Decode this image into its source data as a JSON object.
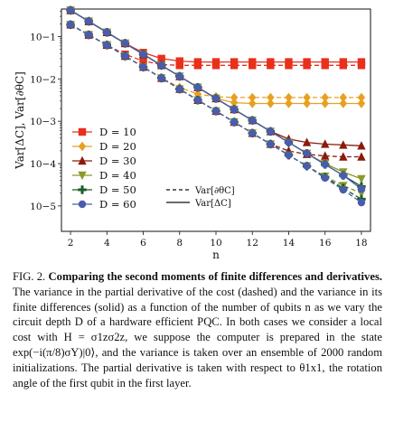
{
  "figure_label": "FIG. 2.",
  "caption_title": "Comparing the second moments of finite differences and derivatives.",
  "caption_body": "The variance in the partial derivative of the cost (dashed) and the variance in its finite differences (solid) as a function of the number of qubits n as we vary the circuit depth D of a hardware efficient PQC. In both cases we consider a local cost with H = σ1zσ2z, we suppose the computer is prepared in the state exp(−i(π/8)σY)|0⟩, and the variance is taken over an ensemble of 2000 random initializations. The partial derivative is taken with respect to θ1x1, the rotation angle of the first qubit in the first layer.",
  "chart_data": {
    "type": "line",
    "xlabel": "n",
    "ylabel": "Var[ΔC], Var[∂θC]",
    "yscale": "log",
    "xlim": [
      1.5,
      18.5
    ],
    "ylim_exp": [
      -5.6,
      -0.35
    ],
    "x_ticks": [
      "2",
      "4",
      "6",
      "8",
      "10",
      "12",
      "14",
      "16",
      "18"
    ],
    "y_ticks": [
      "10−1",
      "10−2",
      "10−3",
      "10−4",
      "10−5"
    ],
    "legend_style_entries": [
      "Var[∂θC]",
      "Var[ΔC]"
    ],
    "x": [
      2,
      3,
      4,
      5,
      6,
      7,
      8,
      9,
      10,
      11,
      12,
      13,
      14,
      15,
      16,
      17,
      18
    ],
    "series": [
      {
        "name": "D = 10",
        "color": "#e8301c",
        "marker": "square",
        "solid_log10": [
          -0.38,
          -0.64,
          -0.9,
          -1.16,
          -1.38,
          -1.52,
          -1.58,
          -1.6,
          -1.6,
          -1.6,
          -1.6,
          -1.6,
          -1.6,
          -1.6,
          -1.6,
          -1.6,
          -1.6
        ],
        "dashed_log10": [
          -0.72,
          -0.96,
          -1.2,
          -1.42,
          -1.58,
          -1.66,
          -1.68,
          -1.68,
          -1.68,
          -1.68,
          -1.68,
          -1.68,
          -1.68,
          -1.68,
          -1.68,
          -1.68,
          -1.68
        ]
      },
      {
        "name": "D = 20",
        "color": "#e8a020",
        "marker": "diamond",
        "solid_log10": [
          -0.38,
          -0.64,
          -0.9,
          -1.16,
          -1.42,
          -1.68,
          -1.94,
          -2.2,
          -2.46,
          -2.56,
          -2.58,
          -2.58,
          -2.58,
          -2.58,
          -2.58,
          -2.58,
          -2.58
        ],
        "dashed_log10": [
          -0.72,
          -0.96,
          -1.2,
          -1.46,
          -1.72,
          -1.98,
          -2.2,
          -2.36,
          -2.42,
          -2.44,
          -2.44,
          -2.44,
          -2.44,
          -2.44,
          -2.44,
          -2.44,
          -2.44
        ]
      },
      {
        "name": "D = 30",
        "color": "#8b1a0c",
        "marker": "triangle-up",
        "solid_log10": [
          -0.38,
          -0.64,
          -0.9,
          -1.16,
          -1.42,
          -1.68,
          -1.94,
          -2.2,
          -2.46,
          -2.72,
          -2.98,
          -3.24,
          -3.42,
          -3.5,
          -3.54,
          -3.56,
          -3.58
        ],
        "dashed_log10": [
          -0.72,
          -0.96,
          -1.2,
          -1.46,
          -1.72,
          -1.98,
          -2.24,
          -2.5,
          -2.76,
          -3.02,
          -3.28,
          -3.54,
          -3.7,
          -3.78,
          -3.82,
          -3.84,
          -3.84
        ]
      },
      {
        "name": "D = 40",
        "color": "#8a9a2a",
        "marker": "triangle-down",
        "solid_log10": [
          -0.38,
          -0.64,
          -0.9,
          -1.16,
          -1.42,
          -1.68,
          -1.94,
          -2.2,
          -2.46,
          -2.72,
          -2.98,
          -3.24,
          -3.5,
          -3.76,
          -4.0,
          -4.2,
          -4.36
        ],
        "dashed_log10": [
          -0.72,
          -0.96,
          -1.2,
          -1.46,
          -1.72,
          -1.98,
          -2.24,
          -2.5,
          -2.76,
          -3.02,
          -3.28,
          -3.54,
          -3.8,
          -4.06,
          -4.3,
          -4.52,
          -4.7
        ]
      },
      {
        "name": "D = 50",
        "color": "#1a5c2a",
        "marker": "plus",
        "solid_log10": [
          -0.38,
          -0.64,
          -0.9,
          -1.16,
          -1.42,
          -1.68,
          -1.94,
          -2.2,
          -2.46,
          -2.72,
          -2.98,
          -3.24,
          -3.5,
          -3.76,
          -4.02,
          -4.28,
          -4.54
        ],
        "dashed_log10": [
          -0.72,
          -0.96,
          -1.2,
          -1.46,
          -1.72,
          -1.98,
          -2.24,
          -2.5,
          -2.76,
          -3.02,
          -3.28,
          -3.54,
          -3.8,
          -4.06,
          -4.32,
          -4.58,
          -4.84
        ]
      },
      {
        "name": "D = 60",
        "color": "#4a5cad",
        "marker": "circle",
        "solid_log10": [
          -0.38,
          -0.64,
          -0.9,
          -1.16,
          -1.42,
          -1.68,
          -1.94,
          -2.2,
          -2.46,
          -2.72,
          -2.98,
          -3.24,
          -3.5,
          -3.76,
          -4.02,
          -4.28,
          -4.6
        ],
        "dashed_log10": [
          -0.72,
          -0.96,
          -1.2,
          -1.46,
          -1.72,
          -1.98,
          -2.24,
          -2.5,
          -2.76,
          -3.02,
          -3.28,
          -3.54,
          -3.8,
          -4.06,
          -4.34,
          -4.62,
          -4.92
        ]
      }
    ]
  }
}
